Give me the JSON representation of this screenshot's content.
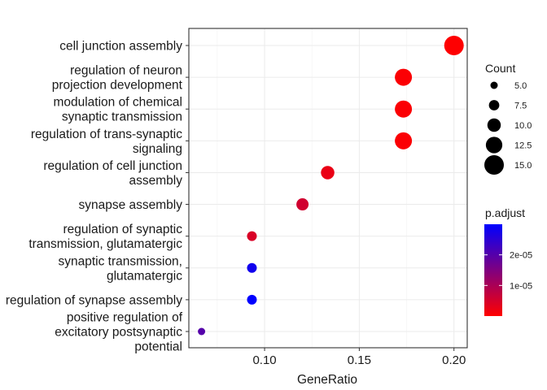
{
  "chart_data": {
    "type": "scatter",
    "xlabel": "GeneRatio",
    "ylabel": "",
    "title": "",
    "xlim": [
      0.06,
      0.207
    ],
    "x_ticks": [
      0.1,
      0.15,
      0.2
    ],
    "x_tick_labels": [
      "0.10",
      "0.15",
      "0.20"
    ],
    "grid": true,
    "legend_position": "right",
    "categories": [
      [
        "cell junction assembly"
      ],
      [
        "regulation of neuron",
        "projection development"
      ],
      [
        "modulation of chemical",
        "synaptic transmission"
      ],
      [
        "regulation of trans-synaptic",
        "signaling"
      ],
      [
        "regulation of cell junction",
        "assembly"
      ],
      [
        "synapse assembly"
      ],
      [
        "regulation of synaptic",
        "transmission, glutamatergic"
      ],
      [
        "synaptic transmission,",
        "glutamatergic"
      ],
      [
        "regulation of synapse assembly"
      ],
      [
        "positive regulation of",
        "excitatory postsynaptic",
        "potential"
      ]
    ],
    "points": [
      {
        "gene_ratio": 0.2,
        "count": 15,
        "p_adjust": 1e-07
      },
      {
        "gene_ratio": 0.1733,
        "count": 13,
        "p_adjust": 5e-07
      },
      {
        "gene_ratio": 0.1733,
        "count": 13,
        "p_adjust": 5e-07
      },
      {
        "gene_ratio": 0.1733,
        "count": 13,
        "p_adjust": 5e-07
      },
      {
        "gene_ratio": 0.1333,
        "count": 10,
        "p_adjust": 2.5e-06
      },
      {
        "gene_ratio": 0.12,
        "count": 9,
        "p_adjust": 5.5e-06
      },
      {
        "gene_ratio": 0.0933,
        "count": 7,
        "p_adjust": 4.5e-06
      },
      {
        "gene_ratio": 0.0933,
        "count": 7,
        "p_adjust": 2.8e-05
      },
      {
        "gene_ratio": 0.0933,
        "count": 7,
        "p_adjust": 3e-05
      },
      {
        "gene_ratio": 0.0667,
        "count": 5,
        "p_adjust": 2e-05
      }
    ],
    "size_legend": {
      "title": "Count",
      "values": [
        5,
        7.5,
        10,
        12.5,
        15
      ],
      "labels": [
        "5.0",
        "7.5",
        "10.0",
        "12.5",
        "15.0"
      ]
    },
    "color_legend": {
      "title": "p.adjust",
      "range": [
        0,
        3e-05
      ],
      "ticks": [
        1e-05,
        2e-05
      ],
      "tick_labels": [
        "1e-05",
        "2e-05"
      ],
      "low_color": "#ff0000",
      "high_color": "#0000ff"
    },
    "colors": {
      "panel_border": "#333333",
      "grid_major": "#ebebeb",
      "grid_minor": "#f5f5f5",
      "text": "#1a1a1a"
    }
  }
}
